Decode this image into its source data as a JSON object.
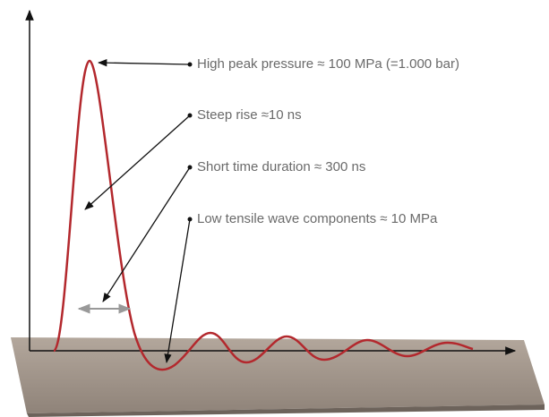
{
  "annotations": [
    {
      "label": "High peak pressure ≈ 100 MPa (=1.000 bar)"
    },
    {
      "label": "Steep rise ≈10 ns"
    },
    {
      "label": "Short time duration ≈ 300 ns"
    },
    {
      "label": "Low tensile wave components ≈ 10 MPa"
    }
  ]
}
